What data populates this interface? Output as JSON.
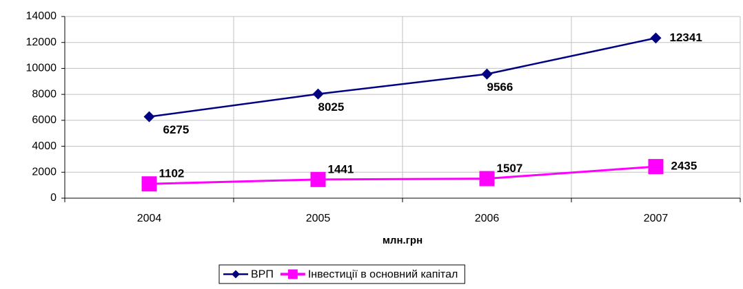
{
  "chart_data": {
    "type": "line",
    "x_label": "млн.грн",
    "categories": [
      "2004",
      "2005",
      "2006",
      "2007"
    ],
    "series": [
      {
        "name": "ВРП",
        "color": "#000080",
        "marker": "diamond",
        "values": [
          6275,
          8025,
          9566,
          12341
        ]
      },
      {
        "name": "Інвестиції в основний капітал",
        "color": "#ff00ff",
        "marker": "square",
        "values": [
          1102,
          1441,
          1507,
          2435
        ]
      }
    ],
    "ylim": [
      0,
      14000
    ],
    "yticks": [
      0,
      2000,
      4000,
      6000,
      8000,
      10000,
      12000,
      14000
    ],
    "grid": true,
    "legend": "bottom"
  }
}
